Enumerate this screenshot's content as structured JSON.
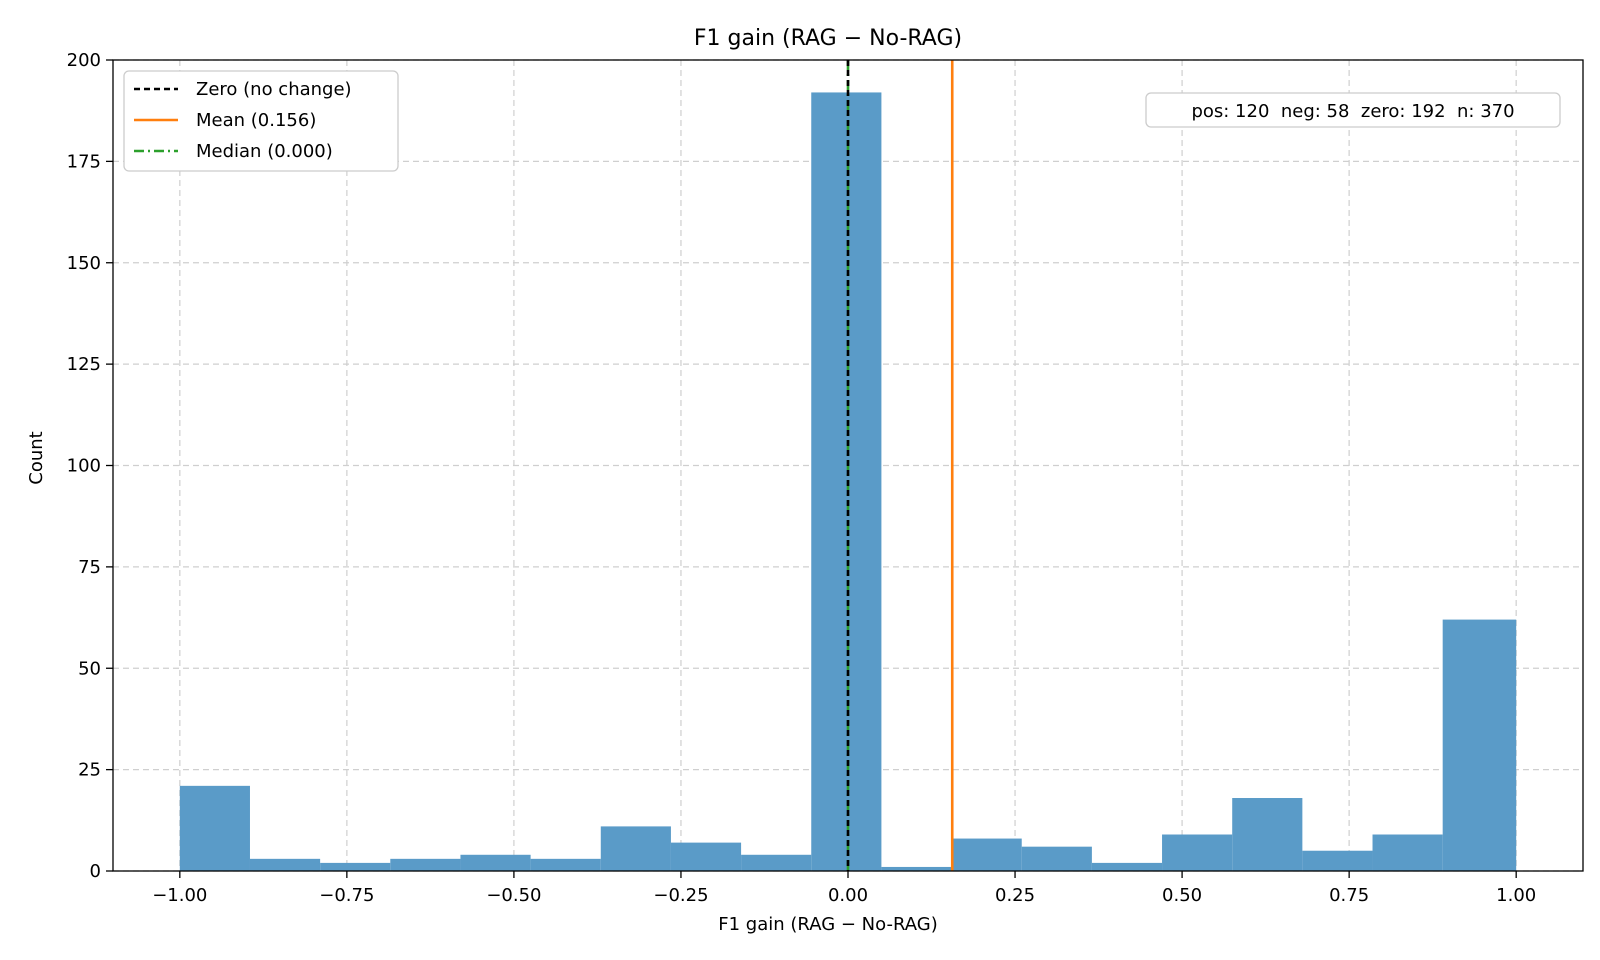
{
  "chart_data": {
    "type": "bar",
    "title": "F1 gain (RAG − No-RAG)",
    "xlabel": "F1 gain (RAG − No-RAG)",
    "ylabel": "Count",
    "xlim": [
      -1.1,
      1.1
    ],
    "ylim": [
      0,
      200
    ],
    "xticks": [
      -1.0,
      -0.75,
      -0.5,
      -0.25,
      0.0,
      0.25,
      0.5,
      0.75,
      1.0
    ],
    "xtick_labels": [
      "−1.00",
      "−0.75",
      "−0.50",
      "−0.25",
      "0.00",
      "0.25",
      "0.50",
      "0.75",
      "1.00"
    ],
    "yticks": [
      0,
      25,
      50,
      75,
      100,
      125,
      150,
      175,
      200
    ],
    "ytick_labels": [
      "0",
      "25",
      "50",
      "75",
      "100",
      "125",
      "150",
      "175",
      "200"
    ],
    "grid": true,
    "bin_edges": [
      -1.0,
      -0.895,
      -0.79,
      -0.685,
      -0.58,
      -0.475,
      -0.37,
      -0.265,
      -0.16,
      -0.055,
      0.05,
      0.155,
      0.26,
      0.365,
      0.47,
      0.575,
      0.68,
      0.785,
      0.89,
      1.0
    ],
    "counts": [
      21,
      3,
      2,
      3,
      4,
      3,
      11,
      7,
      4,
      192,
      1,
      8,
      6,
      2,
      9,
      18,
      5,
      9,
      62
    ],
    "bar_color": "#5a9bc8",
    "reference_lines": [
      {
        "name": "Zero (no change)",
        "x": 0.0,
        "color": "#000000",
        "style": "dashed"
      },
      {
        "name": "Mean (0.156)",
        "x": 0.156,
        "color": "#ff7f0e",
        "style": "solid"
      },
      {
        "name": "Median (0.000)",
        "x": 0.0,
        "color": "#2ca02c",
        "style": "dashdot"
      }
    ],
    "legend_position": "top-left",
    "stats_text": "pos: 120  neg: 58  zero: 192  n: 370",
    "stats_position": "top-right"
  }
}
